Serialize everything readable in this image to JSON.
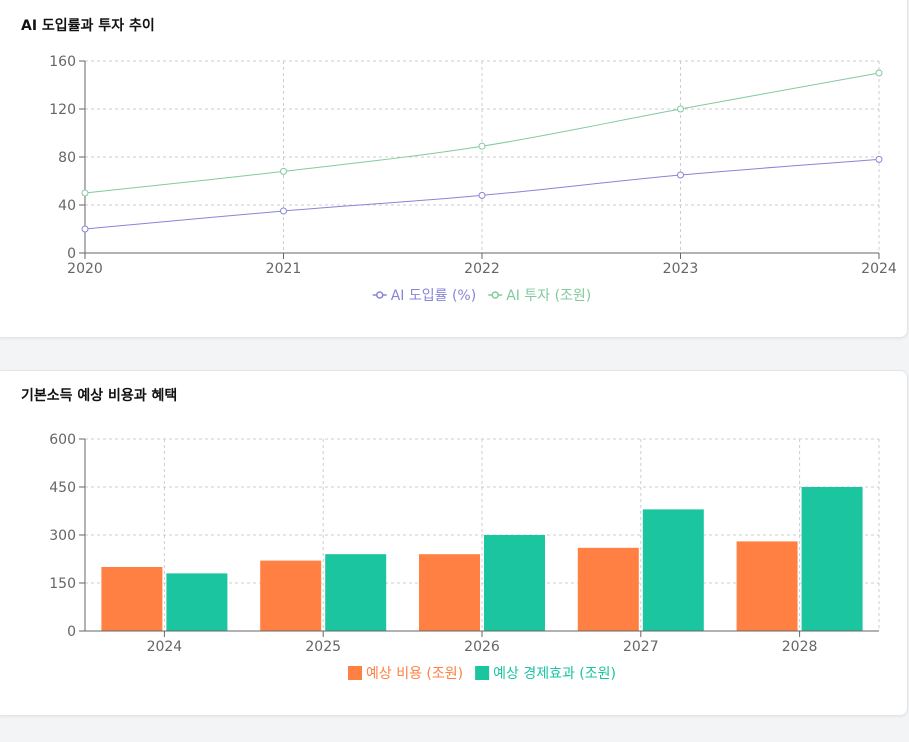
{
  "charts": [
    {
      "title": "AI 도입률과 투자 추이"
    },
    {
      "title": "기본소득 예상 비용과 혜택"
    }
  ],
  "chart_data": [
    {
      "type": "line",
      "title": "AI 도입률과 투자 추이",
      "xlabel": "",
      "ylabel": "",
      "x": [
        "2020",
        "2021",
        "2022",
        "2023",
        "2024"
      ],
      "ylim": [
        0,
        160
      ],
      "yticks": [
        0,
        40,
        80,
        120,
        160
      ],
      "grid": true,
      "legend": "bottom",
      "series": [
        {
          "name": "AI 도입률 (%)",
          "values": [
            20,
            35,
            48,
            65,
            78
          ],
          "color": "#8884d8"
        },
        {
          "name": "AI 투자 (조원)",
          "values": [
            50,
            68,
            89,
            120,
            150
          ],
          "color": "#82ca9d"
        }
      ]
    },
    {
      "type": "bar",
      "title": "기본소득 예상 비용과 혜택",
      "xlabel": "",
      "ylabel": "",
      "categories": [
        "2024",
        "2025",
        "2026",
        "2027",
        "2028"
      ],
      "ylim": [
        0,
        600
      ],
      "yticks": [
        0,
        150,
        300,
        450,
        600
      ],
      "grid": true,
      "legend": "bottom",
      "series": [
        {
          "name": "예상 비용 (조원)",
          "values": [
            200,
            220,
            240,
            260,
            280
          ],
          "color": "#ff8042"
        },
        {
          "name": "예상 경제효과 (조원)",
          "values": [
            180,
            240,
            300,
            380,
            450
          ],
          "color": "#1ac5a0"
        }
      ]
    }
  ]
}
